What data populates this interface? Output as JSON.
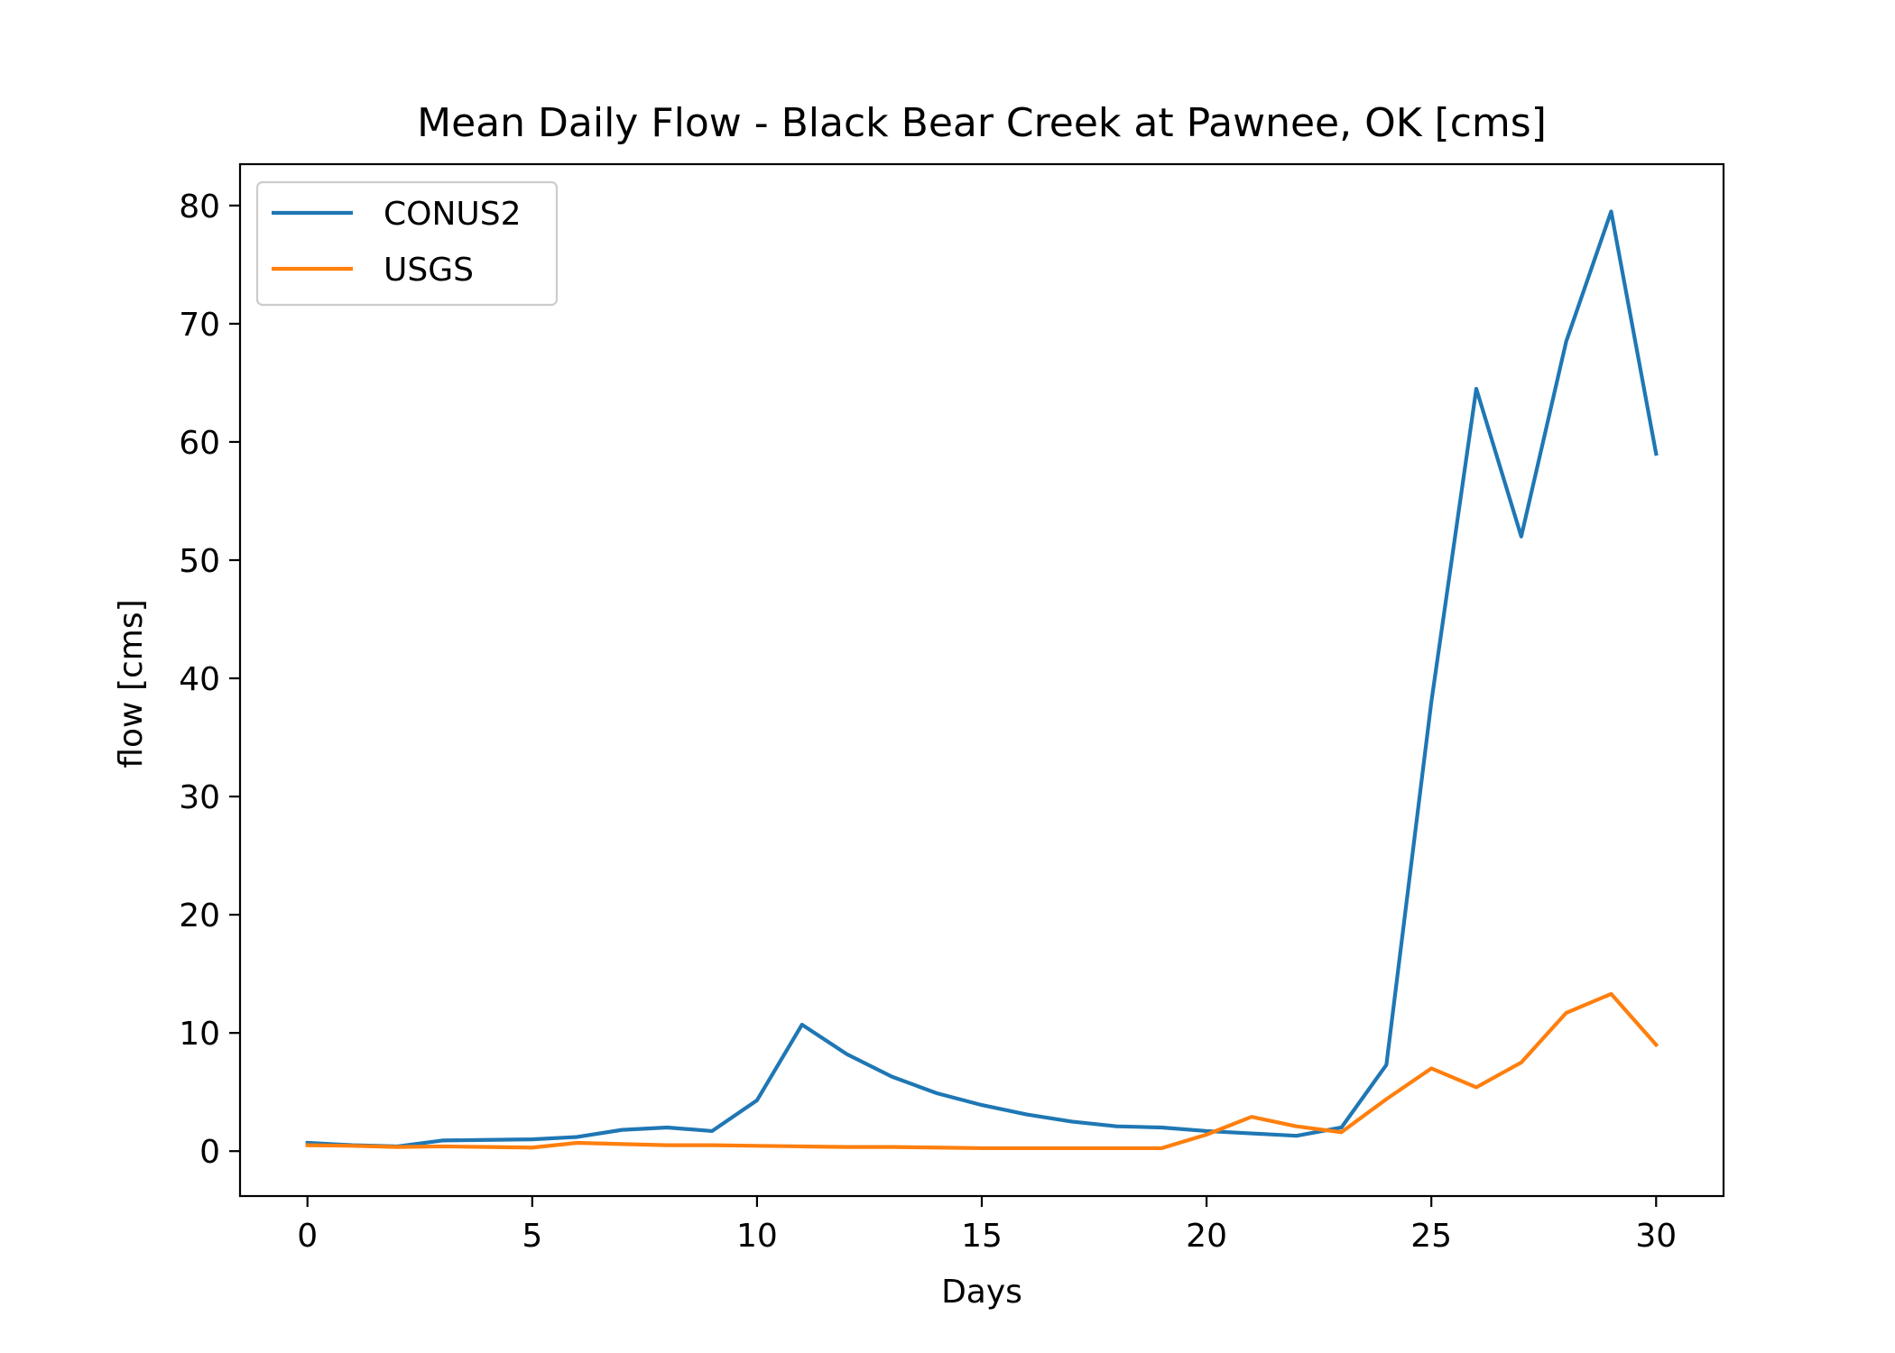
{
  "chart_data": {
    "type": "line",
    "title": "Mean Daily Flow - Black Bear Creek at Pawnee, OK [cms]",
    "xlabel": "Days",
    "ylabel": "flow [cms]",
    "xlim": [
      -1.5,
      31.5
    ],
    "ylim": [
      -3.8,
      83.5
    ],
    "xticks": [
      0,
      5,
      10,
      15,
      20,
      25,
      30
    ],
    "yticks": [
      0,
      10,
      20,
      30,
      40,
      50,
      60,
      70,
      80
    ],
    "grid": false,
    "legend_position": "top-left",
    "x": [
      0,
      1,
      2,
      3,
      4,
      5,
      6,
      7,
      8,
      9,
      10,
      11,
      12,
      13,
      14,
      15,
      16,
      17,
      18,
      19,
      20,
      21,
      22,
      23,
      24,
      25,
      26,
      27,
      28,
      29,
      30
    ],
    "series": [
      {
        "name": "CONUS2",
        "color": "#1f77b4",
        "values": [
          0.7,
          0.5,
          0.4,
          0.9,
          0.95,
          1.0,
          1.2,
          1.8,
          2.0,
          1.7,
          4.3,
          10.7,
          8.2,
          6.3,
          4.9,
          3.9,
          3.1,
          2.5,
          2.1,
          2.0,
          1.7,
          1.5,
          1.3,
          2.0,
          7.3,
          38.0,
          64.5,
          52.0,
          68.5,
          79.5,
          59.0
        ]
      },
      {
        "name": "USGS",
        "color": "#ff7f0e",
        "values": [
          0.5,
          0.45,
          0.35,
          0.4,
          0.35,
          0.3,
          0.7,
          0.6,
          0.5,
          0.5,
          0.45,
          0.4,
          0.35,
          0.35,
          0.3,
          0.25,
          0.25,
          0.25,
          0.25,
          0.25,
          1.4,
          2.9,
          2.1,
          1.6,
          4.4,
          7.0,
          5.4,
          7.5,
          11.7,
          13.3,
          9.0
        ]
      }
    ]
  }
}
